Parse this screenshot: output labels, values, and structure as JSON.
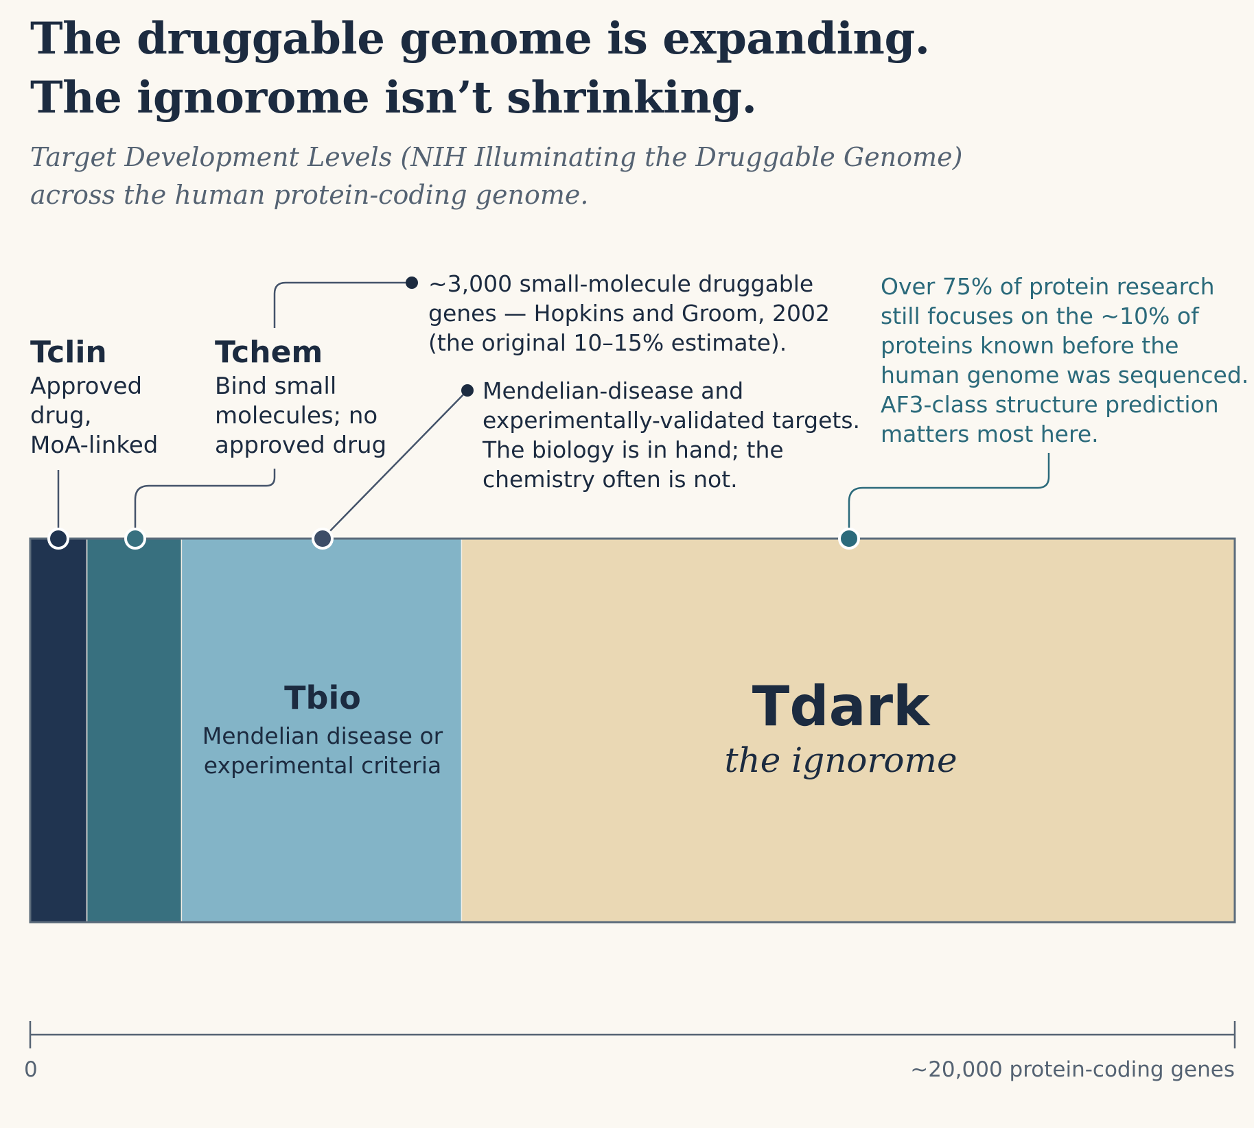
{
  "title": {
    "line1": "The druggable genome is expanding.",
    "line2": "The ignorome isn’t shrinking."
  },
  "subtitle": {
    "line1": "Target Development Levels (NIH Illuminating the Druggable Genome)",
    "line2": "across the human protein-coding genome."
  },
  "colors": {
    "background": "#fbf8f2",
    "text": "#1c2b40",
    "muted": "#556373",
    "teal_text": "#2b6a7b",
    "frame": "#5b6b7b"
  },
  "chart_data": {
    "type": "bar",
    "orientation": "horizontal-stacked",
    "total": 20000,
    "segments": [
      {
        "name": "Tclin",
        "description": [
          "Approved",
          "drug,",
          "MoA-linked"
        ],
        "approx_genes": 950,
        "color": "#203450"
      },
      {
        "name": "Tchem",
        "description": [
          "Bind small",
          "molecules; no",
          "approved drug"
        ],
        "approx_genes": 1570,
        "color": "#38707f"
      },
      {
        "name": "Tbio",
        "description": [
          "Mendelian disease or",
          "experimental criteria"
        ],
        "approx_genes": 4650,
        "color": "#83b4c7"
      },
      {
        "name": "Tdark",
        "description": [
          "the ignorome"
        ],
        "approx_genes": 12830,
        "color": "#ead8b4"
      }
    ],
    "xlim": [
      0,
      20000
    ],
    "axis": {
      "start_label": "0",
      "end_label": "~20,000 protein-coding genes"
    },
    "annotations": [
      {
        "id": "hopkins",
        "lines": [
          "~3,000 small-molecule druggable",
          "genes — Hopkins and Groom, 2002",
          "(the original 10–15% estimate)."
        ],
        "marks_gene_count": 3000
      },
      {
        "id": "tbio",
        "lines": [
          "Mendelian-disease and",
          "experimentally-validated targets.",
          "The biology is in hand; the",
          "chemistry often is not."
        ]
      },
      {
        "id": "tdark",
        "lines": [
          "Over 75% of protein research",
          "still focuses on the ~10% of",
          "proteins known before the",
          "human genome was sequenced.",
          "AF3-class structure prediction",
          "matters most here."
        ]
      }
    ]
  }
}
